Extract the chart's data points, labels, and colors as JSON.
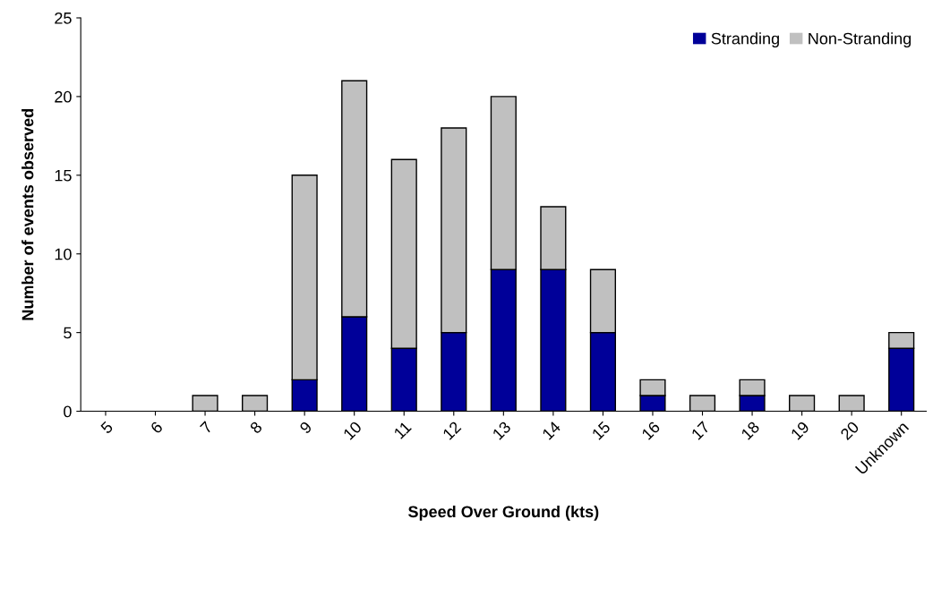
{
  "chart_data": {
    "type": "bar",
    "stacked": true,
    "xlabel": "Speed Over Ground (kts)",
    "ylabel": "Number of events observed",
    "categories": [
      "5",
      "6",
      "7",
      "8",
      "9",
      "10",
      "11",
      "12",
      "13",
      "14",
      "15",
      "16",
      "17",
      "18",
      "19",
      "20",
      "Unknown"
    ],
    "series": [
      {
        "name": "Stranding",
        "color": "#000099",
        "values": [
          0,
          0,
          0,
          0,
          2,
          6,
          4,
          5,
          9,
          9,
          5,
          1,
          0,
          1,
          0,
          0,
          4
        ]
      },
      {
        "name": "Non-Stranding",
        "color": "#c0c0c0",
        "values": [
          0,
          0,
          1,
          1,
          13,
          15,
          12,
          13,
          11,
          4,
          4,
          1,
          1,
          1,
          1,
          1,
          1
        ]
      }
    ],
    "ylim": [
      0,
      25
    ],
    "yticks": [
      0,
      5,
      10,
      15,
      20,
      25
    ],
    "grid": false,
    "legend": "top right"
  }
}
